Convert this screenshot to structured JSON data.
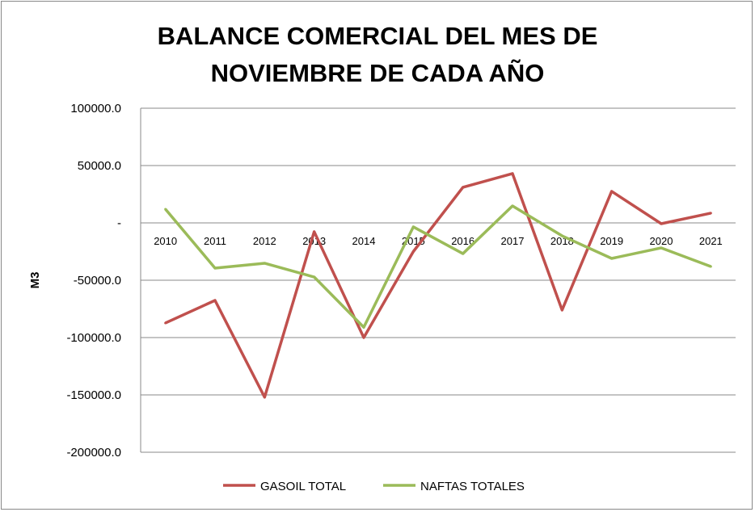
{
  "chart_data": {
    "type": "line",
    "title_lines": [
      "BALANCE COMERCIAL DEL MES DE",
      "NOVIEMBRE DE CADA AÑO"
    ],
    "xlabel": "",
    "ylabel": "M3",
    "categories": [
      "2010",
      "2011",
      "2012",
      "2013",
      "2014",
      "2015",
      "2016",
      "2017",
      "2018",
      "2019",
      "2020",
      "2021"
    ],
    "ylim": [
      -200000,
      100000
    ],
    "yticks": [
      100000,
      50000,
      0,
      -50000,
      -100000,
      -150000,
      -200000
    ],
    "ytick_labels": [
      "100000.0",
      "50000.0",
      "-",
      "-50000.0",
      "-100000.0",
      "-150000.0",
      "-200000.0"
    ],
    "grid": "horizontal",
    "legend": "bottom",
    "series": [
      {
        "name": "GASOIL TOTAL",
        "color": "#C0504D",
        "values": [
          -87300,
          -67600,
          -152000,
          -7700,
          -100000,
          -25000,
          31000,
          43000,
          -76000,
          27500,
          -700,
          8500
        ]
      },
      {
        "name": "NAFTAS TOTALES",
        "color": "#9BBB59",
        "values": [
          12000,
          -39400,
          -35200,
          -47200,
          -91000,
          -3500,
          -26800,
          14800,
          -11300,
          -31000,
          -21800,
          -38000
        ]
      }
    ]
  }
}
